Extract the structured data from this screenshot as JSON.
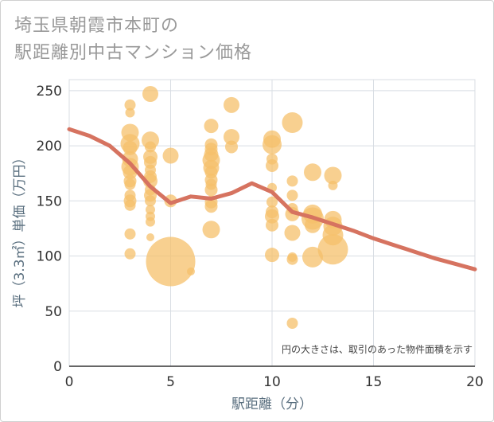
{
  "title_line1": "埼玉県朝霞市本町の",
  "title_line2": "駅距離別中古マンション価格",
  "chart_data": {
    "type": "scatter",
    "title": "埼玉県朝霞市本町の駅距離別中古マンション価格",
    "xlabel": "駅距離（分）",
    "ylabel": "坪（3.3㎡）単価（万円）",
    "xlim": [
      0,
      20
    ],
    "ylim": [
      0,
      260
    ],
    "xticks": [
      0,
      5,
      10,
      15,
      20
    ],
    "yticks": [
      0,
      50,
      100,
      150,
      200,
      250
    ],
    "grid": true,
    "note": "円の大きさは、取引のあった物件面積を示す",
    "bubble_color": "#f5c06b",
    "line_color": "#d67360",
    "points": [
      {
        "x": 3,
        "y": 237,
        "s": 7
      },
      {
        "x": 3,
        "y": 230,
        "s": 6
      },
      {
        "x": 3,
        "y": 212,
        "s": 11
      },
      {
        "x": 3,
        "y": 202,
        "s": 12
      },
      {
        "x": 3,
        "y": 198,
        "s": 9
      },
      {
        "x": 3,
        "y": 188,
        "s": 10
      },
      {
        "x": 3,
        "y": 181,
        "s": 11
      },
      {
        "x": 3,
        "y": 176,
        "s": 9
      },
      {
        "x": 3,
        "y": 168,
        "s": 8
      },
      {
        "x": 3,
        "y": 165,
        "s": 7
      },
      {
        "x": 3,
        "y": 155,
        "s": 7
      },
      {
        "x": 3,
        "y": 150,
        "s": 8
      },
      {
        "x": 3,
        "y": 146,
        "s": 7
      },
      {
        "x": 3,
        "y": 120,
        "s": 7
      },
      {
        "x": 3,
        "y": 102,
        "s": 7
      },
      {
        "x": 4,
        "y": 247,
        "s": 10
      },
      {
        "x": 4,
        "y": 205,
        "s": 11
      },
      {
        "x": 4,
        "y": 199,
        "s": 7
      },
      {
        "x": 4,
        "y": 190,
        "s": 9
      },
      {
        "x": 4,
        "y": 185,
        "s": 8
      },
      {
        "x": 4,
        "y": 178,
        "s": 7
      },
      {
        "x": 4,
        "y": 172,
        "s": 8
      },
      {
        "x": 4,
        "y": 168,
        "s": 9
      },
      {
        "x": 4,
        "y": 160,
        "s": 7
      },
      {
        "x": 4,
        "y": 155,
        "s": 8
      },
      {
        "x": 4,
        "y": 150,
        "s": 7
      },
      {
        "x": 4,
        "y": 142,
        "s": 6
      },
      {
        "x": 4,
        "y": 136,
        "s": 6
      },
      {
        "x": 4,
        "y": 131,
        "s": 6
      },
      {
        "x": 4,
        "y": 117,
        "s": 5
      },
      {
        "x": 5,
        "y": 191,
        "s": 10
      },
      {
        "x": 5,
        "y": 150,
        "s": 8
      },
      {
        "x": 5,
        "y": 95,
        "s": 31
      },
      {
        "x": 6,
        "y": 86,
        "s": 5
      },
      {
        "x": 7,
        "y": 218,
        "s": 9
      },
      {
        "x": 7,
        "y": 201,
        "s": 8
      },
      {
        "x": 7,
        "y": 197,
        "s": 8
      },
      {
        "x": 7,
        "y": 192,
        "s": 9
      },
      {
        "x": 7,
        "y": 187,
        "s": 11
      },
      {
        "x": 7,
        "y": 180,
        "s": 10
      },
      {
        "x": 7,
        "y": 176,
        "s": 8
      },
      {
        "x": 7,
        "y": 169,
        "s": 8
      },
      {
        "x": 7,
        "y": 165,
        "s": 7
      },
      {
        "x": 7,
        "y": 160,
        "s": 8
      },
      {
        "x": 7,
        "y": 149,
        "s": 8
      },
      {
        "x": 7,
        "y": 145,
        "s": 8
      },
      {
        "x": 7,
        "y": 124,
        "s": 11
      },
      {
        "x": 8,
        "y": 237,
        "s": 10
      },
      {
        "x": 8,
        "y": 208,
        "s": 10
      },
      {
        "x": 8,
        "y": 199,
        "s": 8
      },
      {
        "x": 10,
        "y": 206,
        "s": 11
      },
      {
        "x": 10,
        "y": 201,
        "s": 12
      },
      {
        "x": 10,
        "y": 188,
        "s": 7
      },
      {
        "x": 10,
        "y": 182,
        "s": 8
      },
      {
        "x": 10,
        "y": 162,
        "s": 6
      },
      {
        "x": 10,
        "y": 149,
        "s": 7
      },
      {
        "x": 10,
        "y": 140,
        "s": 8
      },
      {
        "x": 10,
        "y": 136,
        "s": 9
      },
      {
        "x": 10,
        "y": 128,
        "s": 8
      },
      {
        "x": 10,
        "y": 101,
        "s": 9
      },
      {
        "x": 11,
        "y": 221,
        "s": 13
      },
      {
        "x": 11,
        "y": 168,
        "s": 7
      },
      {
        "x": 11,
        "y": 155,
        "s": 7
      },
      {
        "x": 11,
        "y": 143,
        "s": 7
      },
      {
        "x": 11,
        "y": 138,
        "s": 9
      },
      {
        "x": 11,
        "y": 121,
        "s": 10
      },
      {
        "x": 11,
        "y": 99,
        "s": 6
      },
      {
        "x": 11,
        "y": 97,
        "s": 7
      },
      {
        "x": 11,
        "y": 39,
        "s": 7
      },
      {
        "x": 12,
        "y": 176,
        "s": 11
      },
      {
        "x": 12,
        "y": 138,
        "s": 12
      },
      {
        "x": 12,
        "y": 134,
        "s": 14
      },
      {
        "x": 12,
        "y": 128,
        "s": 10
      },
      {
        "x": 12,
        "y": 99,
        "s": 13
      },
      {
        "x": 13,
        "y": 173,
        "s": 11
      },
      {
        "x": 13,
        "y": 164,
        "s": 6
      },
      {
        "x": 13,
        "y": 133,
        "s": 11
      },
      {
        "x": 13,
        "y": 127,
        "s": 12
      },
      {
        "x": 13,
        "y": 119,
        "s": 13
      },
      {
        "x": 13,
        "y": 106,
        "s": 19
      }
    ],
    "series": [
      {
        "type": "line",
        "x": [
          0,
          1,
          2,
          3,
          4,
          5,
          6,
          7,
          8,
          9,
          10,
          11,
          12,
          13,
          14,
          15,
          16,
          17,
          18,
          19,
          20
        ],
        "values": [
          215,
          209,
          200,
          184,
          163,
          148,
          154,
          152,
          157,
          166,
          158,
          140,
          135,
          129,
          123,
          116,
          110,
          104,
          98,
          93,
          88
        ]
      }
    ]
  }
}
